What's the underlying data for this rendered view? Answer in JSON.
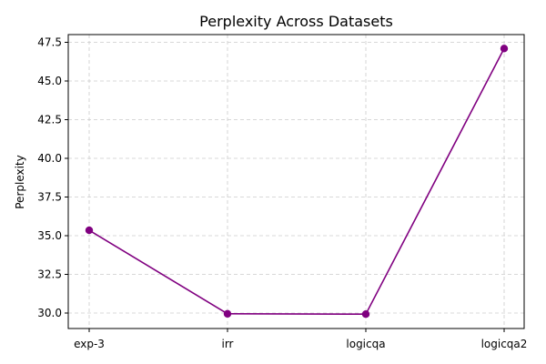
{
  "chart_data": {
    "type": "line",
    "title": "Perplexity Across Datasets",
    "xlabel": "",
    "ylabel": "Perplexity",
    "categories": [
      "exp-3",
      "irr",
      "logicqa",
      "logicqa2"
    ],
    "series": [
      {
        "values": [
          35.35,
          29.95,
          29.93,
          47.1
        ]
      }
    ],
    "ylim": [
      29.0,
      48.0
    ],
    "yticks": [
      "30.0",
      "32.5",
      "35.0",
      "37.5",
      "40.0",
      "42.5",
      "45.0",
      "47.5"
    ],
    "grid": true,
    "line_color": "#800080",
    "grid_color": "#cccccc"
  }
}
